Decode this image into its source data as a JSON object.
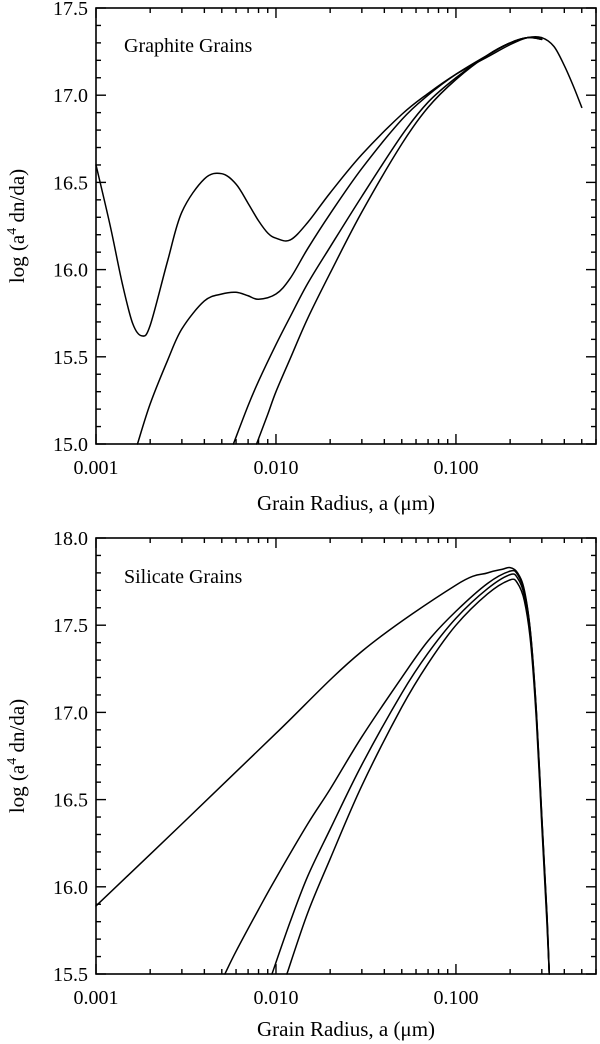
{
  "chart_data": [
    {
      "type": "line",
      "title": "Graphite Grains",
      "xlabel": "Grain Radius, a (μm)",
      "ylabel_prefix": "log (a",
      "ylabel_sup": "4",
      "ylabel_suffix": " dn/da)",
      "xscale": "log",
      "xlim": [
        0.001,
        0.6
      ],
      "ylim": [
        15.0,
        17.5
      ],
      "xticks": [
        0.001,
        0.01,
        0.1
      ],
      "xtick_labels": [
        "0.001",
        "0.010",
        "0.100"
      ],
      "yticks": [
        15.0,
        15.5,
        16.0,
        16.5,
        17.0,
        17.5
      ],
      "ytick_labels": [
        "15.0",
        "15.5",
        "16.0",
        "16.5",
        "17.0",
        "17.5"
      ],
      "series": [
        {
          "x": [
            0.001,
            0.0012,
            0.0014,
            0.0016,
            0.0018,
            0.002,
            0.0025,
            0.003,
            0.004,
            0.005,
            0.006,
            0.007,
            0.008,
            0.009,
            0.01,
            0.012,
            0.015,
            0.02,
            0.03,
            0.05,
            0.07,
            0.1,
            0.15,
            0.2,
            0.25,
            0.3,
            0.35,
            0.4,
            0.45,
            0.5
          ],
          "y": [
            16.6,
            16.25,
            15.92,
            15.69,
            15.62,
            15.68,
            16.05,
            16.33,
            16.52,
            16.55,
            16.49,
            16.38,
            16.28,
            16.21,
            16.18,
            16.17,
            16.27,
            16.44,
            16.66,
            16.89,
            17.01,
            17.12,
            17.22,
            17.29,
            17.33,
            17.33,
            17.28,
            17.17,
            17.05,
            16.93
          ]
        },
        {
          "x": [
            0.0017,
            0.002,
            0.0025,
            0.003,
            0.004,
            0.005,
            0.006,
            0.007,
            0.008,
            0.01,
            0.012,
            0.015,
            0.02,
            0.03,
            0.05,
            0.07,
            0.1,
            0.15,
            0.2,
            0.25,
            0.3
          ],
          "y": [
            15.0,
            15.23,
            15.48,
            15.66,
            15.82,
            15.86,
            15.87,
            15.85,
            15.83,
            15.86,
            15.95,
            16.12,
            16.32,
            16.58,
            16.86,
            17.0,
            17.12,
            17.23,
            17.3,
            17.33,
            17.33
          ]
        },
        {
          "x": [
            0.0058,
            0.007,
            0.008,
            0.01,
            0.012,
            0.015,
            0.02,
            0.03,
            0.05,
            0.07,
            0.1,
            0.15,
            0.2,
            0.25,
            0.3
          ],
          "y": [
            15.0,
            15.22,
            15.36,
            15.57,
            15.73,
            15.92,
            16.13,
            16.42,
            16.77,
            16.96,
            17.1,
            17.23,
            17.3,
            17.33,
            17.32
          ]
        },
        {
          "x": [
            0.0078,
            0.009,
            0.01,
            0.012,
            0.015,
            0.02,
            0.03,
            0.05,
            0.07,
            0.1,
            0.15,
            0.2,
            0.25,
            0.3
          ],
          "y": [
            15.0,
            15.17,
            15.3,
            15.49,
            15.72,
            15.98,
            16.33,
            16.72,
            16.93,
            17.09,
            17.23,
            17.3,
            17.33,
            17.32
          ]
        }
      ]
    },
    {
      "type": "line",
      "title": "Silicate Grains",
      "xlabel": "Grain Radius, a (μm)",
      "ylabel_prefix": "log (a",
      "ylabel_sup": "4",
      "ylabel_suffix": " dn/da)",
      "xscale": "log",
      "xlim": [
        0.001,
        0.6
      ],
      "ylim": [
        15.5,
        18.0
      ],
      "xticks": [
        0.001,
        0.01,
        0.1
      ],
      "xtick_labels": [
        "0.001",
        "0.010",
        "0.100"
      ],
      "yticks": [
        15.5,
        16.0,
        16.5,
        17.0,
        17.5,
        18.0
      ],
      "ytick_labels": [
        "15.5",
        "16.0",
        "16.5",
        "17.0",
        "17.5",
        "18.0"
      ],
      "series": [
        {
          "x": [
            0.001,
            0.003,
            0.01,
            0.03,
            0.1,
            0.15,
            0.18,
            0.2,
            0.22,
            0.24,
            0.26,
            0.28,
            0.3,
            0.32,
            0.33
          ],
          "y": [
            15.89,
            16.36,
            16.88,
            17.35,
            17.73,
            17.8,
            17.82,
            17.83,
            17.8,
            17.7,
            17.45,
            17.0,
            16.4,
            15.85,
            15.5
          ]
        },
        {
          "x": [
            0.0052,
            0.006,
            0.008,
            0.01,
            0.015,
            0.02,
            0.03,
            0.05,
            0.07,
            0.1,
            0.15,
            0.2,
            0.22,
            0.24,
            0.26,
            0.28,
            0.3,
            0.32,
            0.33
          ],
          "y": [
            15.5,
            15.63,
            15.87,
            16.05,
            16.36,
            16.56,
            16.86,
            17.2,
            17.41,
            17.58,
            17.74,
            17.81,
            17.79,
            17.69,
            17.45,
            17.0,
            16.4,
            15.85,
            15.5
          ]
        },
        {
          "x": [
            0.0095,
            0.012,
            0.015,
            0.02,
            0.03,
            0.05,
            0.07,
            0.1,
            0.15,
            0.2,
            0.22,
            0.24,
            0.26,
            0.28,
            0.3,
            0.32,
            0.33
          ],
          "y": [
            15.5,
            15.8,
            16.06,
            16.33,
            16.7,
            17.11,
            17.34,
            17.54,
            17.71,
            17.79,
            17.77,
            17.67,
            17.43,
            16.98,
            16.38,
            15.83,
            15.5
          ]
        },
        {
          "x": [
            0.0115,
            0.015,
            0.02,
            0.03,
            0.05,
            0.07,
            0.1,
            0.15,
            0.2,
            0.22,
            0.24,
            0.26,
            0.28,
            0.3,
            0.32,
            0.33
          ],
          "y": [
            15.5,
            15.85,
            16.16,
            16.58,
            17.03,
            17.28,
            17.5,
            17.68,
            17.76,
            17.74,
            17.64,
            17.4,
            16.95,
            16.35,
            15.8,
            15.5
          ]
        }
      ]
    }
  ]
}
